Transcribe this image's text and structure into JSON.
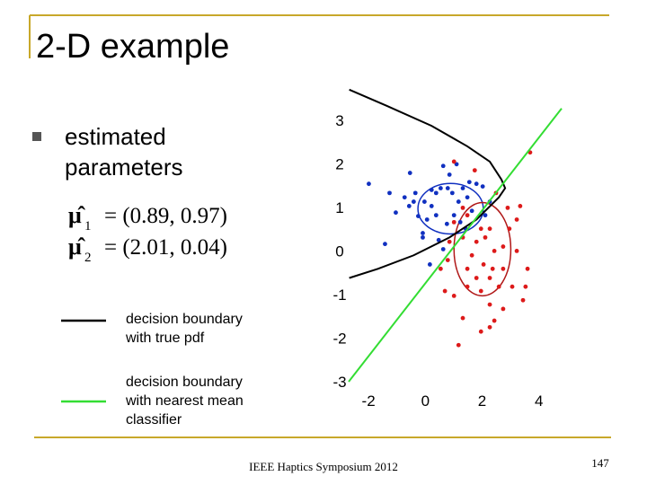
{
  "header": {
    "title": "2-D example"
  },
  "bullets": [
    {
      "text_lines": [
        "estimated",
        "parameters"
      ]
    }
  ],
  "formulas": [
    {
      "symbol": "μ̂",
      "subscript": "1",
      "rhs": "= (0.89, 0.97)"
    },
    {
      "symbol": "μ̂",
      "subscript": "2",
      "rhs": "= (2.01, 0.04)"
    }
  ],
  "legend": [
    {
      "color": "#000000",
      "text_lines": [
        "decision boundary",
        "with true pdf"
      ]
    },
    {
      "color": "#33dd33",
      "text_lines": [
        "decision boundary",
        "with nearest mean",
        "classifier"
      ]
    }
  ],
  "chart_data": {
    "type": "scatter",
    "xlim": [
      -2.7,
      4.8
    ],
    "ylim": [
      -3,
      3.8
    ],
    "xticks": [
      -2,
      0,
      2,
      4
    ],
    "yticks": [
      -3,
      -2,
      -1,
      0,
      1,
      2,
      3
    ],
    "series": [
      {
        "color": "#1030c0",
        "x": [
          -1.99,
          -1.26,
          -1.04,
          -0.54,
          -0.41,
          -0.25,
          -0.09,
          0.06,
          0.22,
          0.38,
          0.54,
          0.63,
          0.79,
          0.95,
          1.01,
          1.17,
          1.32,
          1.48,
          1.64,
          0.76,
          0.47,
          -0.09,
          -1.42,
          1.8,
          2.11,
          2.27,
          0.16,
          0.63,
          0.85,
          1.1,
          0.22,
          -0.57,
          -0.35,
          1.42,
          0.38,
          -0.03,
          -0.73,
          2.02,
          1.55,
          1.23
        ],
        "y": [
          1.54,
          1.33,
          0.88,
          1.79,
          1.13,
          0.8,
          0.41,
          0.72,
          1.03,
          1.33,
          1.44,
          1.95,
          1.44,
          1.33,
          0.82,
          1.13,
          1.44,
          1.23,
          0.92,
          0.62,
          0.25,
          0.31,
          0.16,
          1.54,
          0.82,
          1.13,
          -0.31,
          0.04,
          1.75,
          1.99,
          1.4,
          1.03,
          1.33,
          0.51,
          0.82,
          1.13,
          1.23,
          1.48,
          1.58,
          0.66
        ]
      },
      {
        "color": "#dd1a1a",
        "x": [
          1.01,
          1.74,
          2.49,
          3.69,
          2.9,
          3.22,
          1.48,
          1.32,
          1.8,
          2.11,
          2.43,
          2.74,
          1.64,
          2.05,
          2.37,
          2.74,
          3.6,
          2.27,
          1.8,
          1.48,
          1.96,
          2.59,
          3.06,
          3.53,
          1.01,
          0.69,
          0.54,
          0.79,
          2.27,
          2.74,
          2.43,
          1.96,
          2.27,
          1.32,
          1.17,
          3.44,
          2.96,
          3.34,
          1.32,
          1.01,
          0.85,
          1.96,
          1.48,
          3.22,
          2.27
        ],
        "y": [
          2.05,
          1.85,
          1.33,
          2.26,
          0.99,
          0.72,
          0.82,
          0.31,
          0.21,
          0.31,
          0,
          0.1,
          -0.1,
          -0.31,
          -0.41,
          -0.41,
          -0.41,
          -0.62,
          -0.62,
          -0.82,
          -0.92,
          -0.82,
          -0.82,
          -0.82,
          -1.03,
          -0.92,
          -0.41,
          -0.21,
          -1.23,
          -1.33,
          -1.6,
          -1.85,
          -1.75,
          -1.54,
          -2.16,
          -1.13,
          0.51,
          1.03,
          0.99,
          0.66,
          0.21,
          0.51,
          -0.41,
          0,
          0.51
        ]
      }
    ],
    "ellipses": [
      {
        "color": "#1030c0",
        "center": [
          0.89,
          0.97
        ],
        "radii": [
          1.15,
          0.58
        ]
      },
      {
        "color": "#b01818",
        "center": [
          2.01,
          0.04
        ],
        "radii": [
          1.0,
          1.07
        ]
      }
    ],
    "lines": [
      {
        "color": "#000000",
        "x": [
          -2.68,
          -1.36,
          0.22,
          1.48,
          2.27,
          2.68,
          2.81,
          2.59,
          1.8,
          0.85,
          -0.41,
          -1.67,
          -2.68
        ],
        "y": [
          3.7,
          3.33,
          2.87,
          2.4,
          2.05,
          1.64,
          1.44,
          1.23,
          0.72,
          0.31,
          -0.1,
          -0.41,
          -0.62
        ]
      },
      {
        "color": "#33dd33",
        "x": [
          -2.7,
          4.8
        ],
        "y": [
          -3,
          3.27
        ]
      }
    ]
  },
  "footer": {
    "text": "IEEE Haptics Symposium 2012",
    "page": "147"
  }
}
